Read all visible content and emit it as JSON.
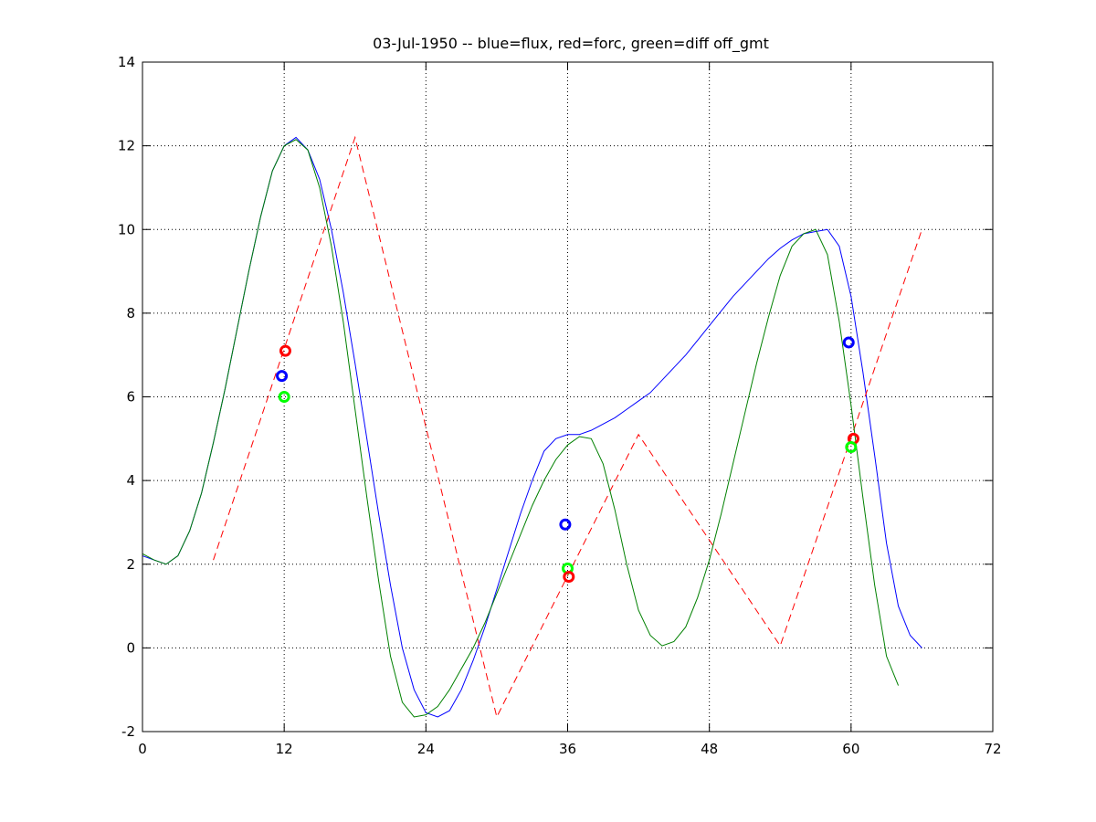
{
  "chart_data": {
    "type": "line",
    "title": "03-Jul-1950 -- blue=flux, red=forc, green=diff off_gmt",
    "xlabel": "",
    "ylabel": "",
    "xlim": [
      0,
      72
    ],
    "ylim": [
      -2,
      14
    ],
    "xticks": [
      0,
      12,
      24,
      36,
      48,
      60,
      72
    ],
    "yticks": [
      -2,
      0,
      2,
      4,
      6,
      8,
      10,
      12,
      14
    ],
    "grid": true,
    "series": [
      {
        "color": "#0000ff",
        "style": "solid",
        "points": [
          [
            0,
            2.2
          ],
          [
            1,
            2.1
          ],
          [
            2,
            2.0
          ],
          [
            3,
            2.2
          ],
          [
            4,
            2.8
          ],
          [
            5,
            3.7
          ],
          [
            6,
            4.9
          ],
          [
            7,
            6.2
          ],
          [
            8,
            7.6
          ],
          [
            9,
            9.0
          ],
          [
            10,
            10.3
          ],
          [
            11,
            11.4
          ],
          [
            12,
            12.0
          ],
          [
            13,
            12.2
          ],
          [
            14,
            11.9
          ],
          [
            15,
            11.2
          ],
          [
            16,
            10.0
          ],
          [
            17,
            8.5
          ],
          [
            18,
            6.8
          ],
          [
            19,
            5.0
          ],
          [
            20,
            3.2
          ],
          [
            21,
            1.5
          ],
          [
            22,
            0.0
          ],
          [
            23,
            -1.0
          ],
          [
            24,
            -1.55
          ],
          [
            25,
            -1.65
          ],
          [
            26,
            -1.5
          ],
          [
            27,
            -1.0
          ],
          [
            28,
            -0.3
          ],
          [
            29,
            0.5
          ],
          [
            30,
            1.4
          ],
          [
            31,
            2.3
          ],
          [
            32,
            3.2
          ],
          [
            33,
            4.0
          ],
          [
            34,
            4.7
          ],
          [
            35,
            5.0
          ],
          [
            36,
            5.1
          ],
          [
            37,
            5.1
          ],
          [
            38,
            5.2
          ],
          [
            39,
            5.35
          ],
          [
            40,
            5.5
          ],
          [
            41,
            5.7
          ],
          [
            42,
            5.9
          ],
          [
            43,
            6.1
          ],
          [
            44,
            6.4
          ],
          [
            45,
            6.7
          ],
          [
            46,
            7.0
          ],
          [
            47,
            7.35
          ],
          [
            48,
            7.7
          ],
          [
            49,
            8.05
          ],
          [
            50,
            8.4
          ],
          [
            51,
            8.7
          ],
          [
            52,
            9.0
          ],
          [
            53,
            9.3
          ],
          [
            54,
            9.55
          ],
          [
            55,
            9.75
          ],
          [
            56,
            9.9
          ],
          [
            57,
            9.95
          ],
          [
            58,
            10.0
          ],
          [
            59,
            9.6
          ],
          [
            60,
            8.4
          ],
          [
            61,
            6.6
          ],
          [
            62,
            4.6
          ],
          [
            63,
            2.5
          ],
          [
            64,
            1.0
          ],
          [
            65,
            0.3
          ],
          [
            66,
            0.0
          ]
        ]
      },
      {
        "color": "#ff0000",
        "style": "dashed",
        "points": [
          [
            6,
            2.1
          ],
          [
            18,
            12.2
          ],
          [
            30,
            -1.65
          ],
          [
            42,
            5.1
          ],
          [
            54,
            0.05
          ],
          [
            66,
            10.0
          ]
        ]
      },
      {
        "color": "#008000",
        "style": "solid",
        "points": [
          [
            0,
            2.25
          ],
          [
            1,
            2.1
          ],
          [
            2,
            2.0
          ],
          [
            3,
            2.2
          ],
          [
            4,
            2.8
          ],
          [
            5,
            3.7
          ],
          [
            6,
            4.9
          ],
          [
            7,
            6.2
          ],
          [
            8,
            7.6
          ],
          [
            9,
            9.0
          ],
          [
            10,
            10.3
          ],
          [
            11,
            11.4
          ],
          [
            12,
            12.0
          ],
          [
            13,
            12.15
          ],
          [
            14,
            11.9
          ],
          [
            15,
            11.0
          ],
          [
            16,
            9.6
          ],
          [
            17,
            7.8
          ],
          [
            18,
            5.7
          ],
          [
            19,
            3.6
          ],
          [
            20,
            1.6
          ],
          [
            21,
            -0.2
          ],
          [
            22,
            -1.3
          ],
          [
            23,
            -1.65
          ],
          [
            24,
            -1.6
          ],
          [
            25,
            -1.4
          ],
          [
            26,
            -1.0
          ],
          [
            27,
            -0.5
          ],
          [
            28,
            0.0
          ],
          [
            29,
            0.6
          ],
          [
            30,
            1.3
          ],
          [
            31,
            2.0
          ],
          [
            32,
            2.7
          ],
          [
            33,
            3.4
          ],
          [
            34,
            4.0
          ],
          [
            35,
            4.5
          ],
          [
            36,
            4.85
          ],
          [
            37,
            5.05
          ],
          [
            38,
            5.0
          ],
          [
            39,
            4.4
          ],
          [
            40,
            3.3
          ],
          [
            41,
            2.0
          ],
          [
            42,
            0.9
          ],
          [
            43,
            0.3
          ],
          [
            44,
            0.05
          ],
          [
            45,
            0.15
          ],
          [
            46,
            0.5
          ],
          [
            47,
            1.2
          ],
          [
            48,
            2.1
          ],
          [
            49,
            3.2
          ],
          [
            50,
            4.4
          ],
          [
            51,
            5.6
          ],
          [
            52,
            6.8
          ],
          [
            53,
            7.9
          ],
          [
            54,
            8.9
          ],
          [
            55,
            9.6
          ],
          [
            56,
            9.9
          ],
          [
            57,
            10.0
          ],
          [
            58,
            9.4
          ],
          [
            59,
            7.8
          ],
          [
            60,
            5.8
          ],
          [
            61,
            3.6
          ],
          [
            62,
            1.5
          ],
          [
            63,
            -0.2
          ],
          [
            64,
            -0.9
          ]
        ]
      }
    ],
    "markers": [
      {
        "x": 11.8,
        "y": 6.5,
        "color": "#0000ff"
      },
      {
        "x": 12.1,
        "y": 7.1,
        "color": "#ff0000"
      },
      {
        "x": 12.0,
        "y": 6.0,
        "color": "#00ff00"
      },
      {
        "x": 35.8,
        "y": 2.95,
        "color": "#0000ff"
      },
      {
        "x": 36.0,
        "y": 1.9,
        "color": "#00ff00"
      },
      {
        "x": 36.1,
        "y": 1.7,
        "color": "#ff0000"
      },
      {
        "x": 59.8,
        "y": 7.3,
        "color": "#0000ff"
      },
      {
        "x": 60.2,
        "y": 5.0,
        "color": "#ff0000"
      },
      {
        "x": 60.0,
        "y": 4.8,
        "color": "#00ff00"
      }
    ]
  }
}
